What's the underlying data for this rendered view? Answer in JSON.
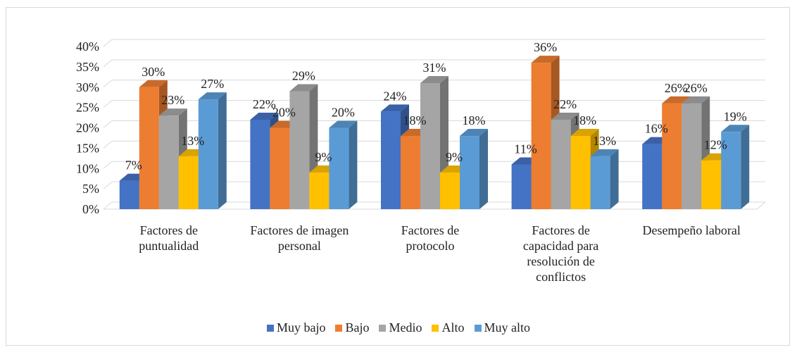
{
  "chart_data": {
    "type": "bar3d",
    "categories": [
      "Factores de puntualidad",
      "Factores de imagen personal",
      "Factores de protocolo",
      "Factores de capacidad para resolución de conflictos",
      "Desempeño laboral"
    ],
    "series": [
      {
        "name": "Muy bajo",
        "color": "#4472c4",
        "values": [
          7,
          22,
          24,
          11,
          16
        ],
        "value_labels": [
          "7%",
          "22%",
          "24%",
          "11%",
          "16%"
        ]
      },
      {
        "name": "Bajo",
        "color": "#ed7d31",
        "values": [
          30,
          20,
          18,
          36,
          26
        ],
        "value_labels": [
          "30%",
          "20%",
          "18%",
          "36%",
          "26%"
        ]
      },
      {
        "name": "Medio",
        "color": "#a5a5a5",
        "values": [
          23,
          29,
          31,
          22,
          26
        ],
        "value_labels": [
          "23%",
          "29%",
          "31%",
          "22%",
          "26%"
        ]
      },
      {
        "name": "Alto",
        "color": "#ffc000",
        "values": [
          13,
          9,
          9,
          18,
          12
        ],
        "value_labels": [
          "13%",
          "9%",
          "9%",
          "18%",
          "12%"
        ]
      },
      {
        "name": "Muy alto",
        "color": "#5b9bd5",
        "values": [
          27,
          20,
          18,
          13,
          19
        ],
        "value_labels": [
          "27%",
          "20%",
          "18%",
          "13%",
          "19%"
        ]
      }
    ],
    "ylim": [
      0,
      40
    ],
    "yticks": [
      {
        "value": 0,
        "label": "0%"
      },
      {
        "value": 5,
        "label": "5%"
      },
      {
        "value": 10,
        "label": "10%"
      },
      {
        "value": 15,
        "label": "15%"
      },
      {
        "value": 20,
        "label": "20%"
      },
      {
        "value": 25,
        "label": "25%"
      },
      {
        "value": 30,
        "label": "30%"
      },
      {
        "value": 35,
        "label": "35%"
      },
      {
        "value": 40,
        "label": "40%"
      }
    ],
    "grid": true,
    "legend": "bottom"
  }
}
